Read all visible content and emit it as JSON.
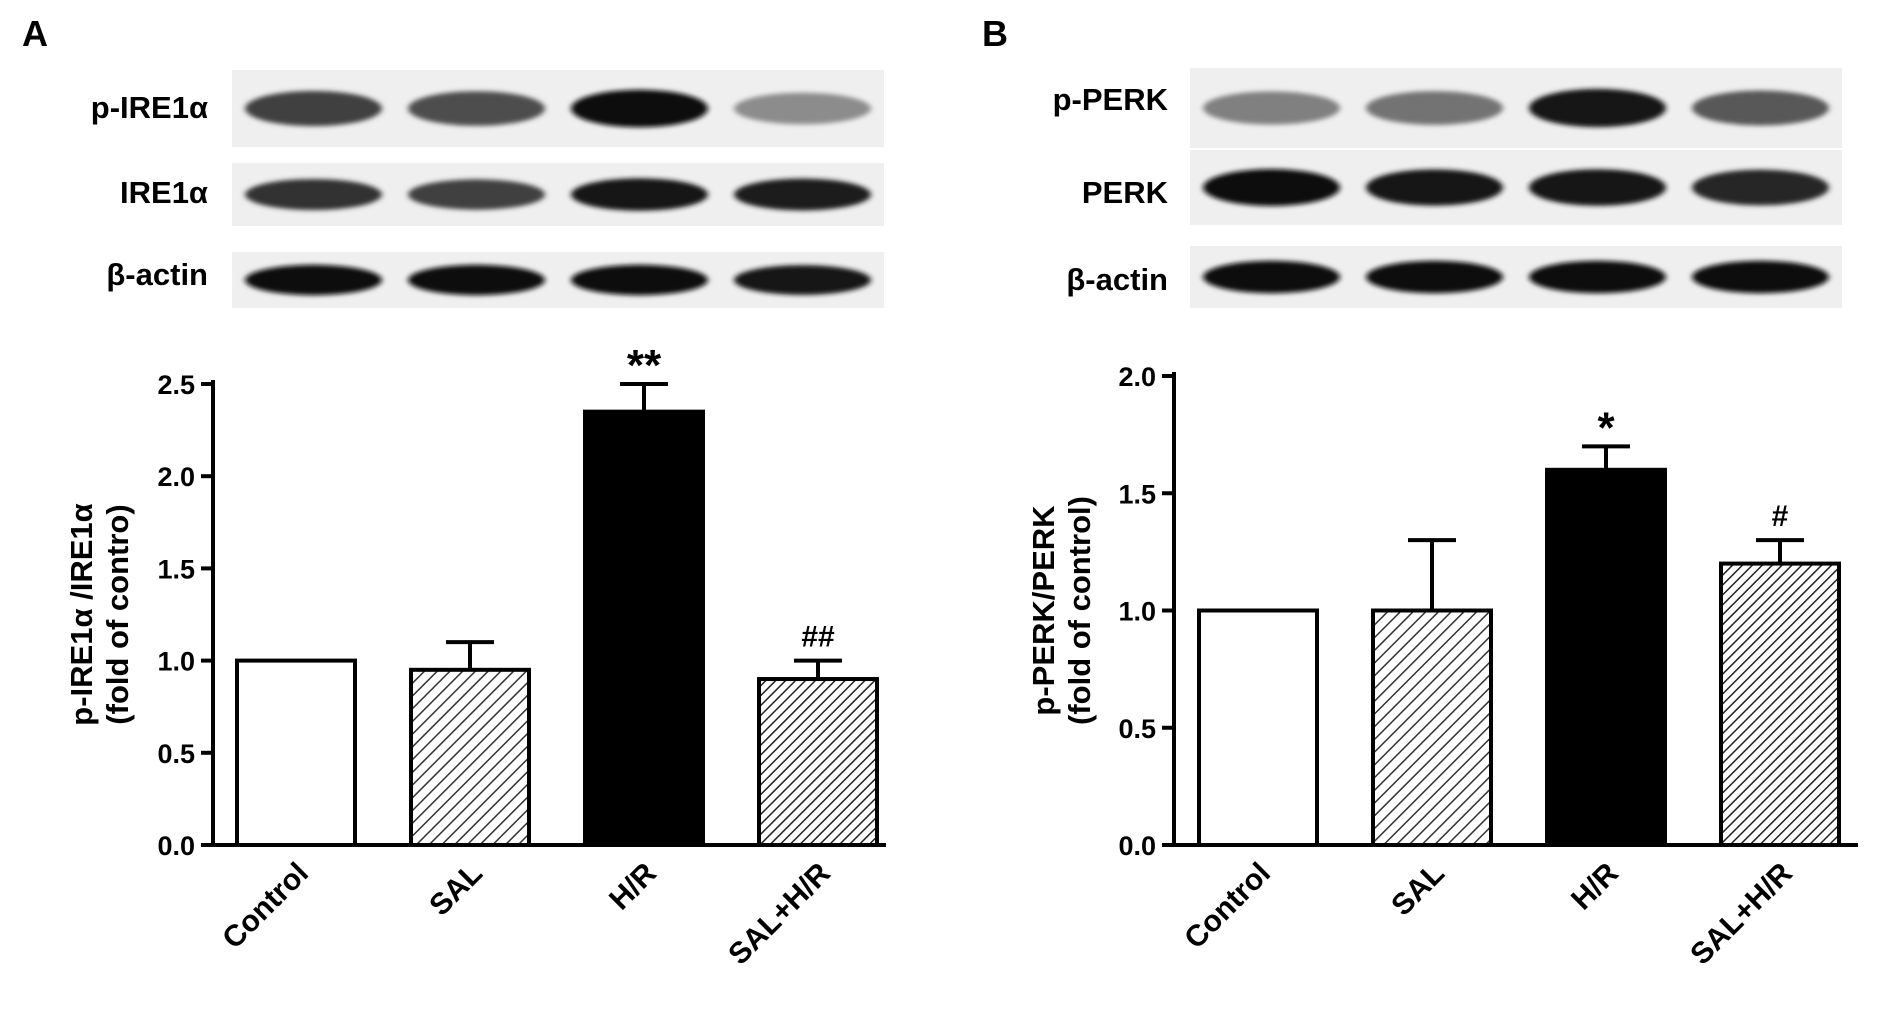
{
  "panels": [
    {
      "letter": "A",
      "blot_labels": [
        "p-IRE1α",
        "IRE1α",
        "β-actin"
      ],
      "blot_band_intensity": [
        [
          0.75,
          0.7,
          0.95,
          0.45
        ],
        [
          0.8,
          0.75,
          0.92,
          0.88
        ],
        [
          0.95,
          0.95,
          0.95,
          0.9
        ]
      ]
    },
    {
      "letter": "B",
      "blot_labels": [
        "p-PERK",
        "PERK",
        "β-actin"
      ],
      "blot_band_intensity": [
        [
          0.5,
          0.55,
          0.92,
          0.65
        ],
        [
          0.95,
          0.9,
          0.92,
          0.85
        ],
        [
          0.95,
          0.95,
          0.95,
          0.95
        ]
      ]
    }
  ],
  "chart_data": [
    {
      "type": "bar",
      "categories": [
        "Control",
        "SAL",
        "H/R",
        "SAL+H/R"
      ],
      "values": [
        1.0,
        0.95,
        2.35,
        0.9
      ],
      "errors": [
        0.0,
        0.15,
        0.15,
        0.1
      ],
      "annotations": [
        "",
        "",
        "**",
        "##"
      ],
      "fills": [
        "white",
        "hatch",
        "black",
        "hatch-dense"
      ],
      "ylabel": "p-IRE1α /IRE1α",
      "ylabel2": "(fold of contro)",
      "xlabel": "",
      "ylim": [
        0,
        2.5
      ],
      "yticks": [
        "0.0",
        "0.5",
        "1.0",
        "1.5",
        "2.0",
        "2.5"
      ],
      "legend": "none",
      "grid": false
    },
    {
      "type": "bar",
      "categories": [
        "Control",
        "SAL",
        "H/R",
        "SAL+H/R"
      ],
      "values": [
        1.0,
        1.0,
        1.6,
        1.2
      ],
      "errors": [
        0.0,
        0.3,
        0.1,
        0.1
      ],
      "annotations": [
        "",
        "",
        "*",
        "#"
      ],
      "fills": [
        "white",
        "hatch",
        "black",
        "hatch-dense"
      ],
      "ylabel": "p-PERK/PERK",
      "ylabel2": "(fold of control)",
      "xlabel": "",
      "ylim": [
        0,
        2.0
      ],
      "yticks": [
        "0.0",
        "0.5",
        "1.0",
        "1.5",
        "2.0"
      ],
      "legend": "none",
      "grid": false
    }
  ]
}
